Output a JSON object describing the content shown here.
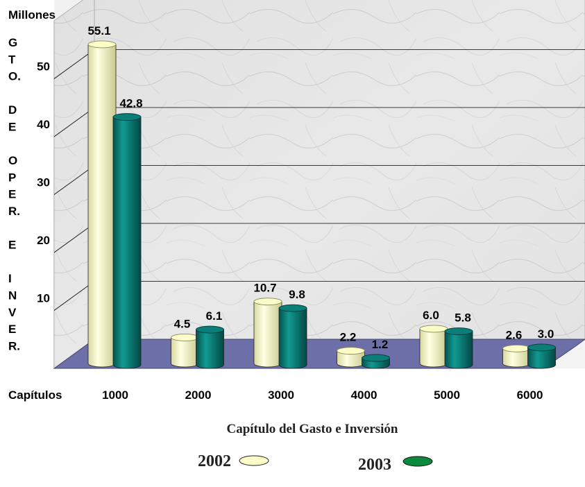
{
  "colors": {
    "series_2002": "#fcfcc8",
    "series_2003": "#0b7e78",
    "floor": "#6c6fa8",
    "background": "#e8e8e8",
    "gridline": "#000000"
  },
  "chart_data": {
    "type": "bar",
    "unit_label": "Millones",
    "ylabel": "GTO. DE OPER. E INVER.",
    "ylabel_lines": [
      "G",
      "T",
      "O.",
      "",
      "D",
      "E",
      "",
      "O",
      "P",
      "E",
      "R.",
      "",
      "E",
      "",
      "I",
      "N",
      "V",
      "E",
      "R."
    ],
    "category_axis_label": "Capítulos",
    "xlabel": "Capítulo del Gasto e Inversión",
    "categories": [
      "1000",
      "2000",
      "3000",
      "4000",
      "5000",
      "6000"
    ],
    "yticks": [
      10,
      20,
      30,
      40,
      50
    ],
    "ylim": [
      0,
      60
    ],
    "series": [
      {
        "name": "2002",
        "values": [
          55.1,
          4.5,
          10.7,
          2.2,
          6.0,
          2.6
        ],
        "labels": [
          "55.1",
          "4.5",
          "10.7",
          "2.2",
          "6.0",
          "2.6"
        ]
      },
      {
        "name": "2003",
        "values": [
          42.8,
          6.1,
          9.8,
          1.2,
          5.8,
          3.0
        ],
        "labels": [
          "42.8",
          "6.1",
          "9.8",
          "1.2",
          "5.8",
          "3.0"
        ]
      }
    ],
    "legend_position": "bottom",
    "grid": true,
    "style": "3d-cylinder"
  }
}
